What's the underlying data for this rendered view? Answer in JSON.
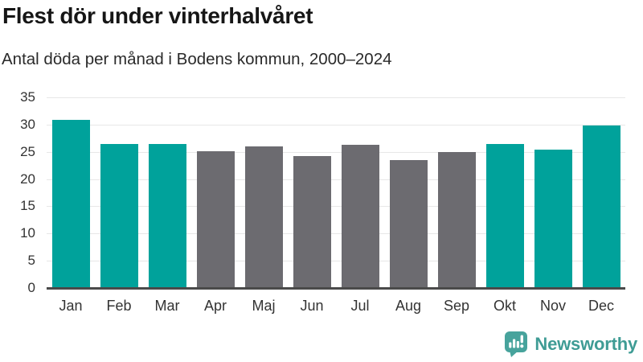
{
  "header": {
    "title": "Flest dör under vinterhalvåret",
    "subtitle": "Antal döda per månad i Bodens kommun, 2000–2024"
  },
  "chart_data": {
    "type": "bar",
    "title": "Flest dör under vinterhalvåret",
    "subtitle": "Antal döda per månad i Bodens kommun, 2000–2024",
    "categories": [
      "Jan",
      "Feb",
      "Mar",
      "Apr",
      "Maj",
      "Jun",
      "Jul",
      "Aug",
      "Sep",
      "Okt",
      "Nov",
      "Dec"
    ],
    "values": [
      30.9,
      26.5,
      26.5,
      25.1,
      26.0,
      24.2,
      26.3,
      23.5,
      25.0,
      26.4,
      25.4,
      29.8
    ],
    "highlighted_categories": [
      "Jan",
      "Feb",
      "Mar",
      "Okt",
      "Nov",
      "Dec"
    ],
    "xlabel": "",
    "ylabel": "",
    "ylim": [
      0,
      35
    ],
    "yticks": [
      0,
      5,
      10,
      15,
      20,
      25,
      30,
      35
    ],
    "grid": true,
    "legend": "none",
    "colors": {
      "highlight": "#00A29B",
      "muted": "#6C6B70",
      "gridline": "#e7e7e7",
      "axis_line": "#4a4a4a"
    }
  },
  "footer": {
    "brand": "Newsworthy",
    "brand_color": "#3F9C95",
    "icon_color": "#47A39C",
    "icon_glyph_color": "#ffffff"
  }
}
